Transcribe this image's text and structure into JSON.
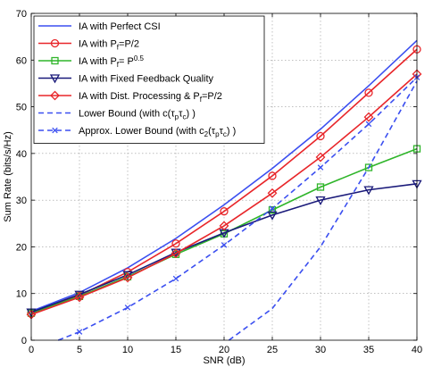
{
  "chart_data": {
    "type": "line",
    "title": "",
    "xlabel": "SNR (dB)",
    "ylabel": "Sum Rate (bits/s/Hz)",
    "xlim": [
      0,
      40
    ],
    "ylim": [
      0,
      70
    ],
    "xticks": [
      0,
      5,
      10,
      15,
      20,
      25,
      30,
      35,
      40
    ],
    "yticks": [
      0,
      10,
      20,
      30,
      40,
      50,
      60,
      70
    ],
    "grid": true,
    "legend_position": "top-left",
    "series": [
      {
        "name": "IA with Perfect CSI",
        "color": "#3b4ff0",
        "style": "solid",
        "marker": "none",
        "x": [
          0,
          5,
          10,
          15,
          20,
          25,
          30,
          35,
          40
        ],
        "y": [
          6.2,
          10.2,
          15.5,
          21.8,
          29.0,
          36.8,
          45.2,
          54.5,
          64.2
        ]
      },
      {
        "name": "IA with P_f=P/2",
        "legend_parts": [
          "IA with P",
          "f",
          "=P/2"
        ],
        "color": "#e8262a",
        "style": "solid",
        "marker": "circle",
        "x": [
          0,
          5,
          10,
          15,
          20,
          25,
          30,
          35,
          40
        ],
        "y": [
          5.8,
          9.6,
          14.6,
          20.7,
          27.6,
          35.2,
          43.7,
          53.0,
          62.3
        ]
      },
      {
        "name": "IA with P_f= P^0.5",
        "legend_parts": [
          "IA with P",
          "f",
          "= P",
          "0.5"
        ],
        "color": "#2fb52a",
        "style": "solid",
        "marker": "square",
        "x": [
          0,
          5,
          10,
          15,
          20,
          25,
          30,
          35,
          40
        ],
        "y": [
          5.8,
          9.4,
          13.6,
          18.4,
          22.8,
          27.9,
          32.8,
          37.0,
          41.0
        ]
      },
      {
        "name": "IA with Fixed Feedback Quality",
        "color": "#1a1a7a",
        "style": "solid",
        "marker": "triangle-down",
        "x": [
          0,
          5,
          10,
          15,
          20,
          25,
          30,
          35,
          40
        ],
        "y": [
          6.0,
          9.8,
          14.0,
          18.8,
          23.0,
          26.8,
          30.0,
          32.2,
          33.5
        ]
      },
      {
        "name": "IA with Dist. Processing & P_f=P/2",
        "legend_parts": [
          "IA with Dist. Processing & P",
          "f",
          "=P/2"
        ],
        "color": "#e8262a",
        "style": "solid",
        "marker": "diamond",
        "x": [
          0,
          5,
          10,
          15,
          20,
          25,
          30,
          35,
          40
        ],
        "y": [
          5.5,
          9.2,
          13.4,
          18.6,
          24.5,
          31.5,
          39.2,
          47.8,
          57.0
        ]
      },
      {
        "name": "Lower Bound (with c(τ_p τ_c) )",
        "legend_parts": [
          "Lower Bound (with c(τ",
          "p",
          "τ",
          "c",
          ") )"
        ],
        "color": "#3b4ff0",
        "style": "dashed",
        "marker": "none",
        "x": [
          20.5,
          25,
          30,
          35,
          40
        ],
        "y": [
          0,
          6.8,
          20.0,
          37.0,
          55.5
        ]
      },
      {
        "name": "Approx. Lower Bound (with c_2(τ_p τ_c) )",
        "legend_parts": [
          "Approx. Lower Bound (with c",
          "2",
          "(τ",
          "p",
          "τ",
          "c",
          ") )"
        ],
        "color": "#3b4ff0",
        "style": "dashed",
        "marker": "x",
        "x": [
          2.8,
          5,
          10,
          15,
          20,
          25,
          30,
          35,
          40
        ],
        "y": [
          0,
          1.8,
          7.0,
          13.2,
          20.4,
          28.2,
          37.0,
          46.3,
          56.3
        ]
      }
    ]
  }
}
